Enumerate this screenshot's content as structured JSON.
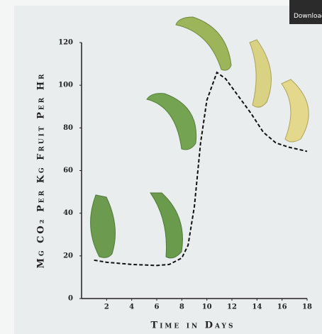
{
  "ui": {
    "download": "Download"
  },
  "chart_data": {
    "type": "line",
    "y_label": "Mg CO₂ Per Kg Fruit Per Hr",
    "x_label": "Time in Days",
    "x": [
      1,
      2,
      4,
      6,
      7,
      8,
      8.5,
      9,
      9.5,
      10,
      10.8,
      11.5,
      12.5,
      13.5,
      14.5,
      15.5,
      16.5,
      18
    ],
    "values": [
      18,
      17,
      16,
      15.5,
      16,
      19,
      25,
      43,
      73,
      93,
      106,
      103,
      95,
      87,
      78,
      73,
      71,
      69
    ],
    "color": "#111111",
    "dashed": true,
    "xlim": [
      0,
      18
    ],
    "xticks": [
      2,
      4,
      6,
      8,
      10,
      12,
      14,
      16,
      18
    ],
    "ylim": [
      0,
      120
    ],
    "yticks": [
      0,
      20,
      40,
      60,
      80,
      100,
      120
    ],
    "grid": false
  }
}
